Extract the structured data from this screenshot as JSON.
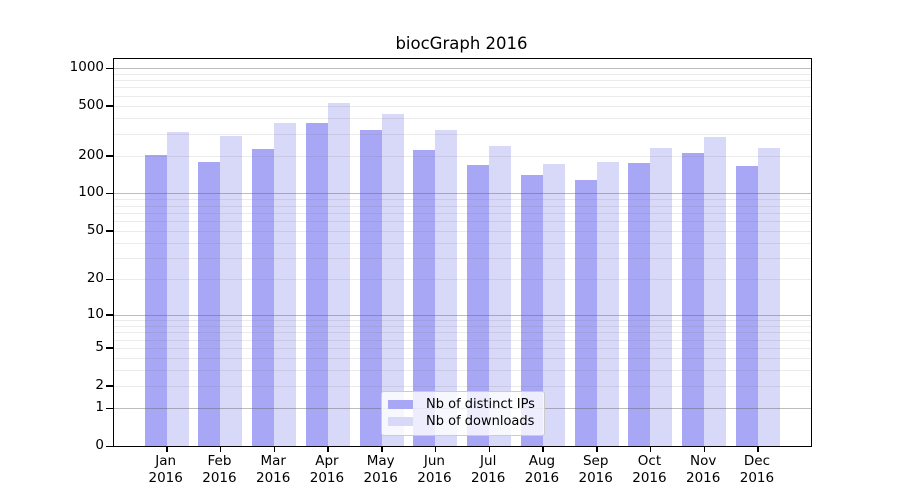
{
  "chart_data": {
    "type": "bar",
    "title": "biocGraph 2016",
    "categories": [
      "Jan",
      "Feb",
      "Mar",
      "Apr",
      "May",
      "Jun",
      "Jul",
      "Aug",
      "Sep",
      "Oct",
      "Nov",
      "Dec"
    ],
    "x_tick_year": "2016",
    "series": [
      {
        "name": "Nb of distinct IPs",
        "color": "#a7a7f5",
        "values": [
          203,
          180,
          226,
          368,
          322,
          224,
          170,
          141,
          129,
          174,
          210,
          167
        ]
      },
      {
        "name": "Nb of downloads",
        "color": "#d8d8f9",
        "values": [
          310,
          286,
          365,
          530,
          430,
          322,
          238,
          172,
          180,
          233,
          284,
          233
        ]
      }
    ],
    "y_axis": {
      "scale": "log1p",
      "ylim": [
        0,
        1000
      ],
      "ticks": [
        0,
        1,
        2,
        5,
        10,
        20,
        50,
        100,
        200,
        500,
        1000
      ],
      "major_gridlines": [
        1,
        10,
        100,
        1000
      ],
      "minor_gridlines": [
        2,
        3,
        4,
        5,
        6,
        7,
        8,
        9,
        20,
        30,
        40,
        50,
        60,
        70,
        80,
        90,
        200,
        300,
        400,
        500,
        600,
        700,
        800,
        900
      ]
    },
    "legend": {
      "position": "inside-bottom-center"
    },
    "grid": true,
    "colors": {
      "background": "#ffffff",
      "axis": "#000000"
    }
  }
}
